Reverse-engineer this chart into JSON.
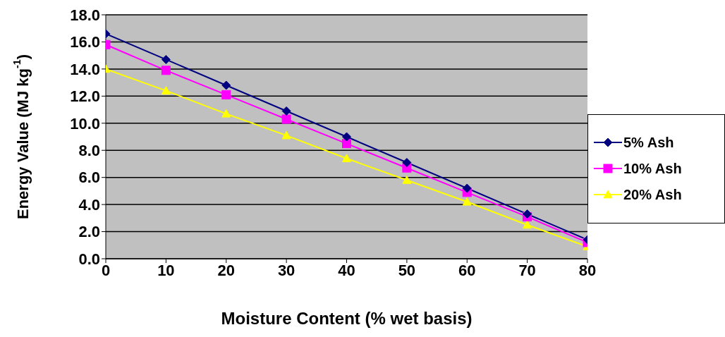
{
  "chart_data": {
    "type": "line",
    "xlabel": "Moisture Content (% wet basis)",
    "ylabel": "Energy Value (MJ kg$^{-1}$)",
    "x": [
      0,
      10,
      20,
      30,
      40,
      50,
      60,
      70,
      80
    ],
    "xlim": [
      0,
      80
    ],
    "xticks": [
      0,
      10,
      20,
      30,
      40,
      50,
      60,
      70,
      80
    ],
    "ylim": [
      0,
      18
    ],
    "yticks": [
      {
        "value": 0,
        "label": "0.0"
      },
      {
        "value": 2,
        "label": "2.0"
      },
      {
        "value": 4,
        "label": "4.0"
      },
      {
        "value": 6,
        "label": "6.0"
      },
      {
        "value": 8,
        "label": "8.0"
      },
      {
        "value": 10,
        "label": "10.0"
      },
      {
        "value": 12,
        "label": "12.0"
      },
      {
        "value": 14,
        "label": "14.0"
      },
      {
        "value": 16,
        "label": "16.0"
      },
      {
        "value": 18,
        "label": "18.0"
      }
    ],
    "grid": "y",
    "legend": "right",
    "line_style": "solid",
    "series": [
      {
        "name": "5% Ash",
        "color": "#000080",
        "marker": "diamond",
        "values": [
          16.6,
          14.7,
          12.8,
          10.9,
          9.0,
          7.1,
          5.2,
          3.3,
          1.4
        ]
      },
      {
        "name": "10% Ash",
        "color": "#ff00ff",
        "marker": "square",
        "values": [
          15.8,
          13.9,
          12.1,
          10.3,
          8.5,
          6.7,
          4.9,
          3.1,
          1.2
        ]
      },
      {
        "name": "20% Ash",
        "color": "#ffff00",
        "marker": "triangle",
        "values": [
          14.0,
          12.4,
          10.7,
          9.1,
          7.4,
          5.8,
          4.2,
          2.5,
          0.9
        ]
      }
    ]
  }
}
